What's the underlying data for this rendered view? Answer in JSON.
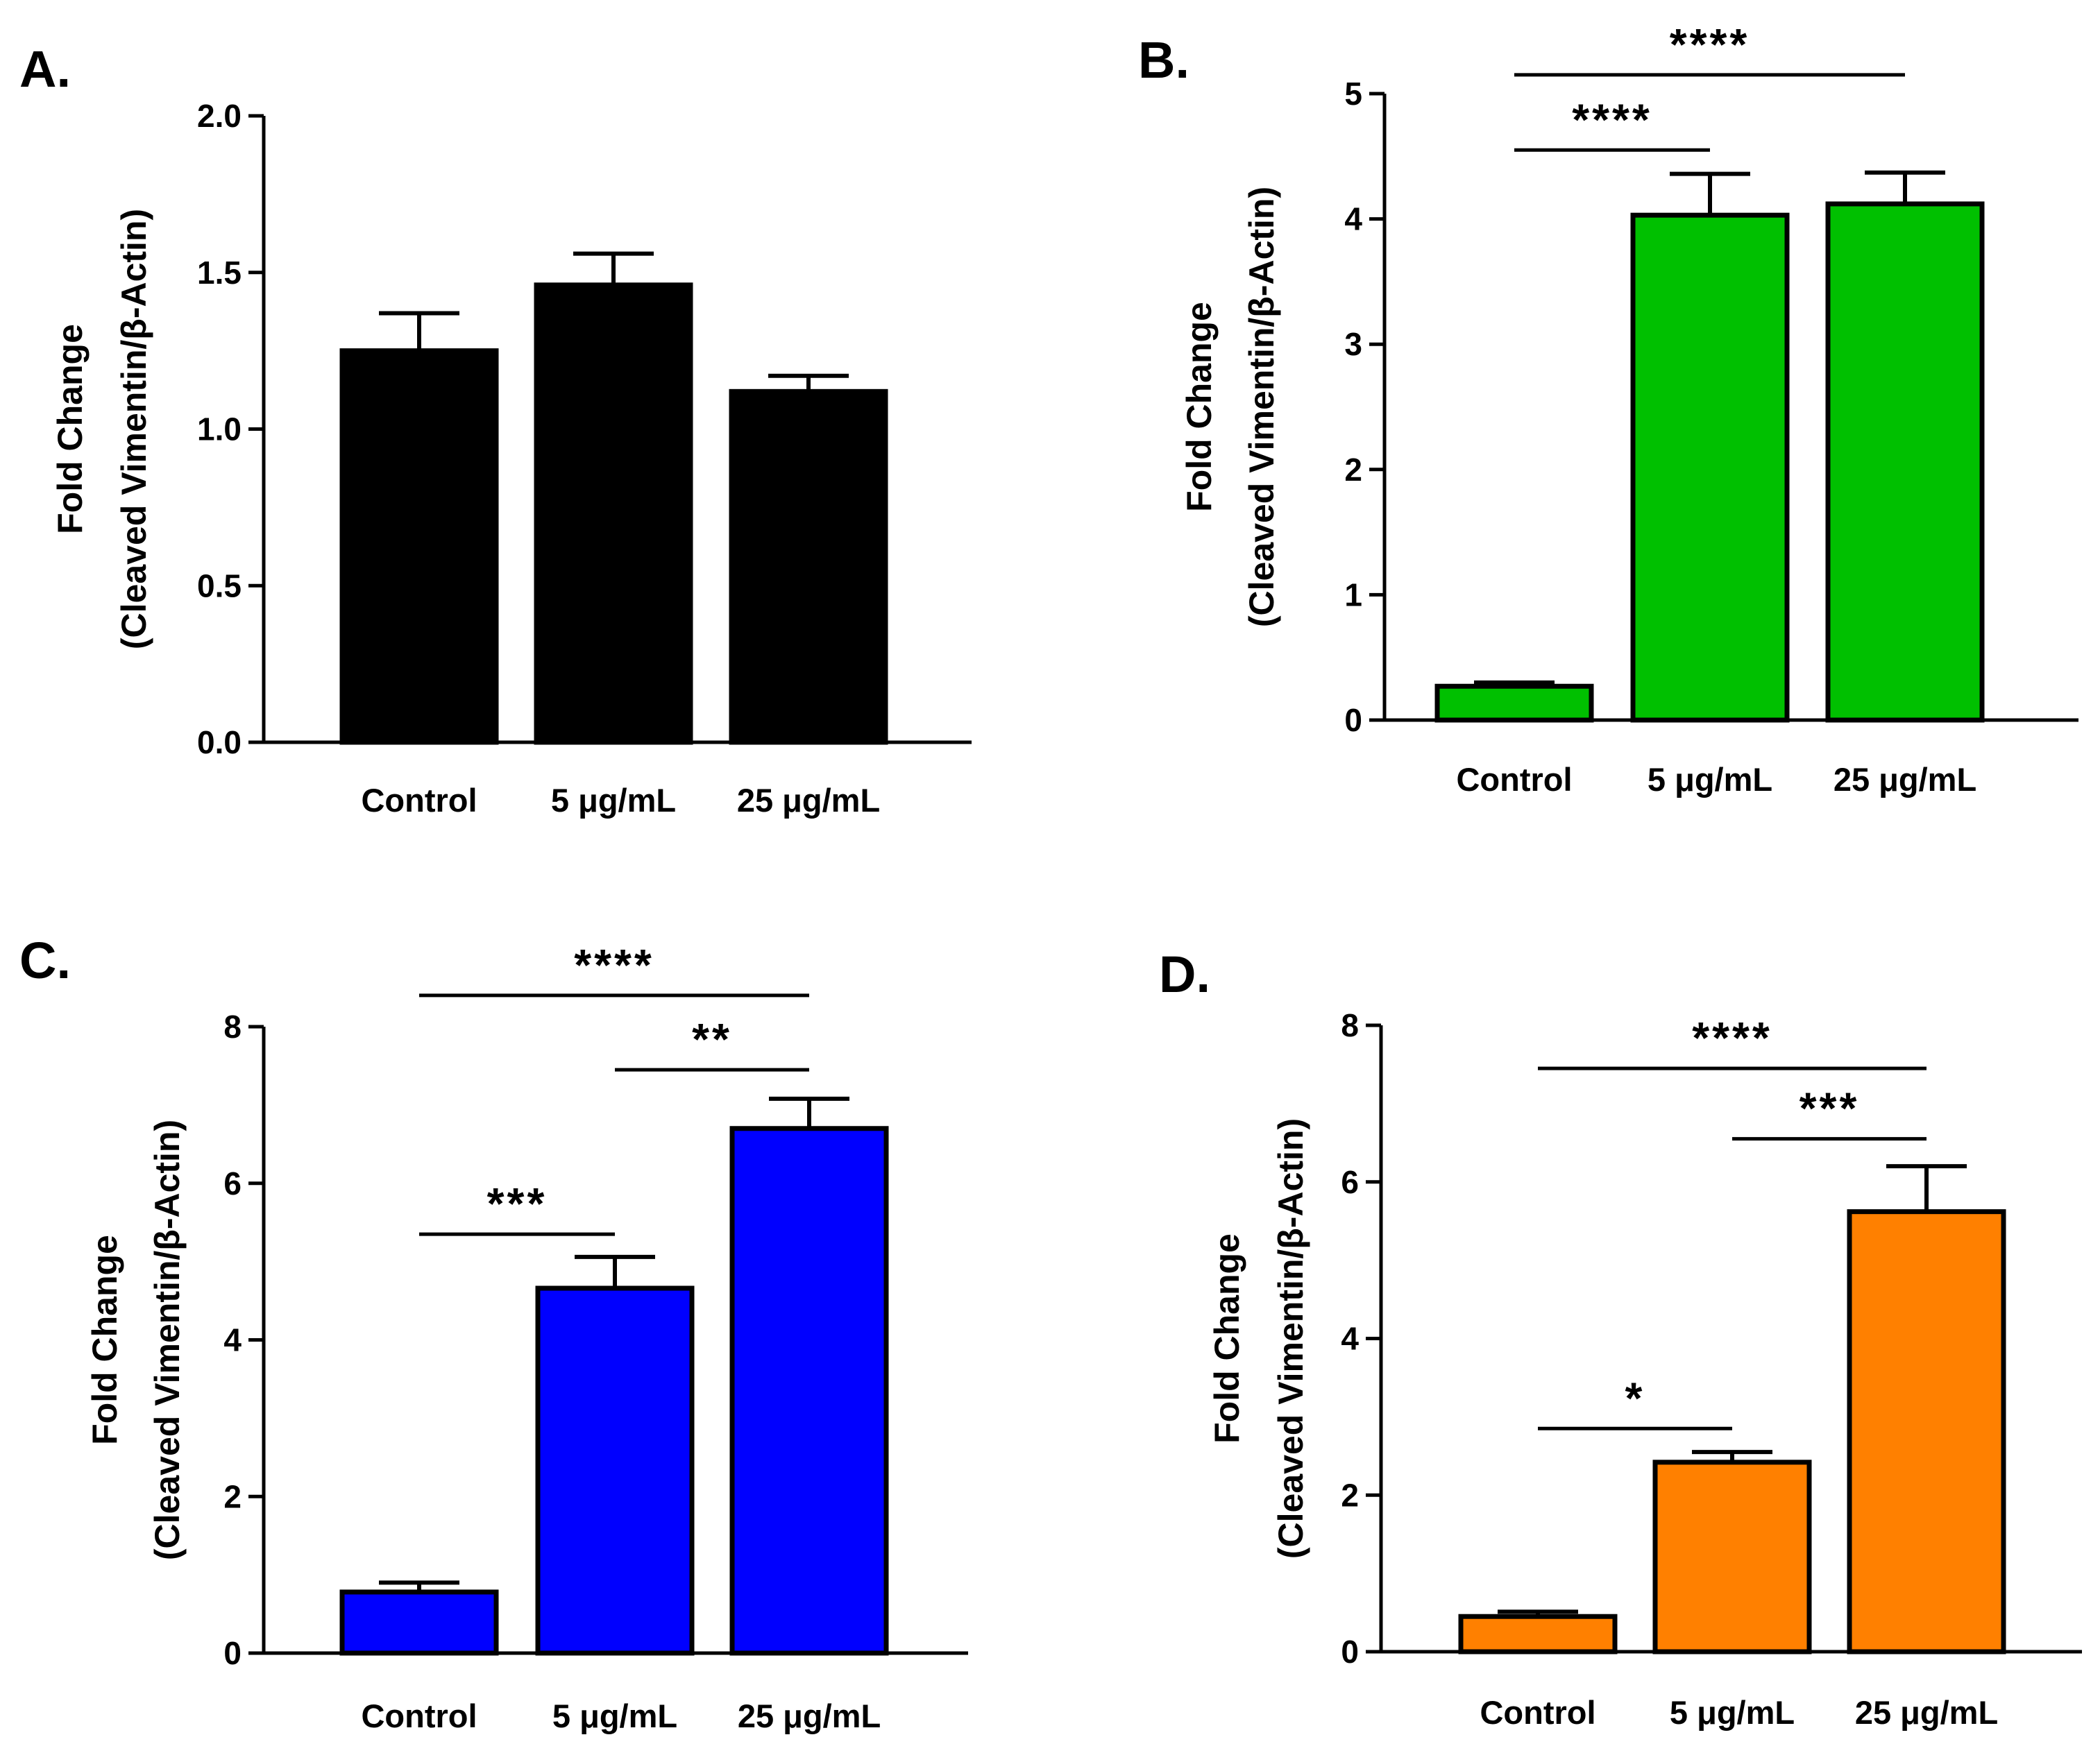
{
  "chart_data": [
    {
      "panel": "A.",
      "type": "bar",
      "categories": [
        "Control",
        "5 μg/mL",
        "25 μg/mL"
      ],
      "values": [
        1.25,
        1.46,
        1.12
      ],
      "errors": [
        0.12,
        0.1,
        0.05
      ],
      "ylabel_line1": "Fold Change",
      "ylabel_line2": "(Cleaved Vimentin/β-Actin)",
      "ylim": [
        0,
        2
      ],
      "yticks": [
        "0.0",
        "0.5",
        "1.0",
        "1.5",
        "2.0"
      ],
      "color": "#000000",
      "significance": []
    },
    {
      "panel": "B.",
      "type": "bar",
      "categories": [
        "Control",
        "5 μg/mL",
        "25 μg/mL"
      ],
      "values": [
        0.27,
        4.03,
        4.12
      ],
      "errors": [
        0.03,
        0.33,
        0.25
      ],
      "ylabel_line1": "Fold Change",
      "ylabel_line2": "(Cleaved Vimentin/β-Actin)",
      "ylim": [
        0,
        5
      ],
      "yticks": [
        "0",
        "1",
        "2",
        "3",
        "4",
        "5"
      ],
      "color": "#00C000",
      "significance": [
        {
          "from": 0,
          "to": 1,
          "y": 4.55,
          "label": "****"
        },
        {
          "from": 0,
          "to": 2,
          "y": 5.15,
          "label": "****"
        }
      ]
    },
    {
      "panel": "C.",
      "type": "bar",
      "categories": [
        "Control",
        "5 μg/mL",
        "25 μg/mL"
      ],
      "values": [
        0.78,
        4.66,
        6.7
      ],
      "errors": [
        0.12,
        0.4,
        0.38
      ],
      "ylabel_line1": "Fold Change",
      "ylabel_line2": "(Cleaved Vimentin/β-Actin)",
      "ylim": [
        0,
        8
      ],
      "yticks": [
        "0",
        "2",
        "4",
        "6",
        "8"
      ],
      "color": "#0000FF",
      "significance": [
        {
          "from": 0,
          "to": 1,
          "y": 5.35,
          "label": "***"
        },
        {
          "from": 1,
          "to": 2,
          "y": 7.45,
          "label": "**"
        },
        {
          "from": 0,
          "to": 2,
          "y": 8.4,
          "label": "****"
        }
      ]
    },
    {
      "panel": "D.",
      "type": "bar",
      "categories": [
        "Control",
        "5 μg/mL",
        "25 μg/mL"
      ],
      "values": [
        0.45,
        2.42,
        5.62
      ],
      "errors": [
        0.06,
        0.13,
        0.58
      ],
      "ylabel_line1": "Fold Change",
      "ylabel_line2": "(Cleaved Vimentin/β-Actin)",
      "ylim": [
        0,
        8
      ],
      "yticks": [
        "0",
        "2",
        "4",
        "6",
        "8"
      ],
      "color": "#FF8000",
      "significance": [
        {
          "from": 0,
          "to": 1,
          "y": 2.85,
          "label": "*"
        },
        {
          "from": 1,
          "to": 2,
          "y": 6.55,
          "label": "***"
        },
        {
          "from": 0,
          "to": 2,
          "y": 7.45,
          "label": "****"
        }
      ]
    }
  ]
}
